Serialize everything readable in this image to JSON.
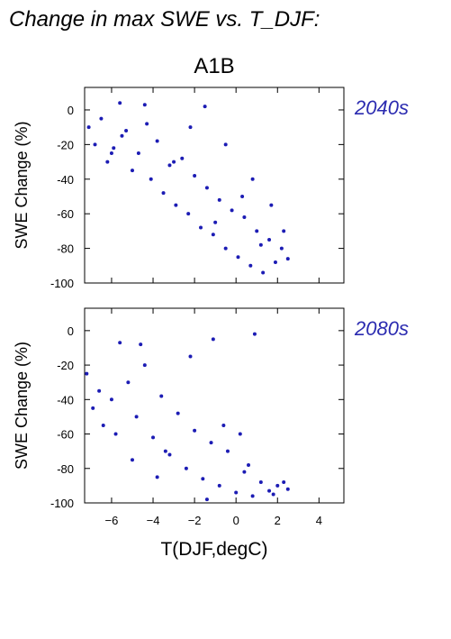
{
  "header": {
    "title": "Change in max SWE vs. T_DJF:"
  },
  "chart_data": [
    {
      "type": "scatter",
      "scenario_title": "A1B",
      "period_label": "2040s",
      "xlabel": "",
      "ylabel": "SWE Change (%)",
      "xlim": [
        -7.3,
        5.2
      ],
      "ylim": [
        -100,
        13
      ],
      "xticks": [
        -6,
        -4,
        -2,
        0,
        2,
        4
      ],
      "yticks": [
        0,
        -20,
        -40,
        -60,
        -80,
        -100
      ],
      "grid": false,
      "color": "#1c1cb4",
      "series": [
        {
          "x": [
            -7.1,
            -6.8,
            -6.5,
            -6.2,
            -5.9,
            -5.6,
            -5.3,
            -5.0,
            -4.7,
            -4.4,
            -4.1,
            -3.8,
            -3.5,
            -3.2,
            -2.9,
            -2.6,
            -2.3,
            -2.0,
            -1.7,
            -1.4,
            -1.1,
            -0.8,
            -0.5,
            -0.2,
            0.1,
            0.4,
            0.7,
            1.0,
            1.3,
            1.6,
            1.9,
            2.2,
            2.5,
            -5.5,
            -4.3,
            -3.0,
            -1.5,
            -0.5,
            0.8,
            1.7,
            -6.0,
            -2.2,
            -1.0,
            0.3,
            1.2,
            2.3
          ],
          "y": [
            -10,
            -20,
            -5,
            -30,
            -22,
            4,
            -12,
            -35,
            -25,
            3,
            -40,
            -18,
            -48,
            -32,
            -55,
            -28,
            -60,
            -38,
            -68,
            -45,
            -72,
            -52,
            -80,
            -58,
            -85,
            -62,
            -90,
            -70,
            -94,
            -75,
            -88,
            -80,
            -86,
            -15,
            -8,
            -30,
            2,
            -20,
            -40,
            -55,
            -25,
            -10,
            -65,
            -50,
            -78,
            -70
          ]
        }
      ]
    },
    {
      "type": "scatter",
      "scenario_title": "",
      "period_label": "2080s",
      "xlabel": "T(DJF,degC)",
      "ylabel": "SWE Change (%)",
      "xlim": [
        -7.3,
        5.2
      ],
      "ylim": [
        -100,
        13
      ],
      "xticks": [
        -6,
        -4,
        -2,
        0,
        2,
        4
      ],
      "xticklabels": [
        "−6",
        "−4",
        "−2",
        "0",
        "2",
        "4"
      ],
      "yticks": [
        0,
        -20,
        -40,
        -60,
        -80,
        -100
      ],
      "grid": false,
      "color": "#1c1cb4",
      "series": [
        {
          "x": [
            -7.2,
            -6.9,
            -6.4,
            -6.0,
            -5.6,
            -5.2,
            -4.8,
            -4.4,
            -4.0,
            -3.6,
            -3.2,
            -2.8,
            -2.4,
            -2.0,
            -1.6,
            -1.2,
            -0.8,
            -0.4,
            0.0,
            0.4,
            0.8,
            1.2,
            1.6,
            2.0,
            2.3,
            2.5,
            -5.8,
            -4.6,
            -3.4,
            -2.2,
            -1.1,
            0.2,
            0.9,
            1.8,
            -6.6,
            -5.0,
            -3.8,
            -1.4,
            -0.6,
            0.6
          ],
          "y": [
            -25,
            -45,
            -55,
            -40,
            -7,
            -30,
            -50,
            -20,
            -62,
            -38,
            -72,
            -48,
            -80,
            -58,
            -86,
            -65,
            -90,
            -70,
            -94,
            -82,
            -96,
            -88,
            -93,
            -90,
            -88,
            -92,
            -60,
            -8,
            -70,
            -15,
            -5,
            -60,
            -2,
            -95,
            -35,
            -75,
            -85,
            -98,
            -55,
            -78
          ]
        }
      ]
    }
  ]
}
